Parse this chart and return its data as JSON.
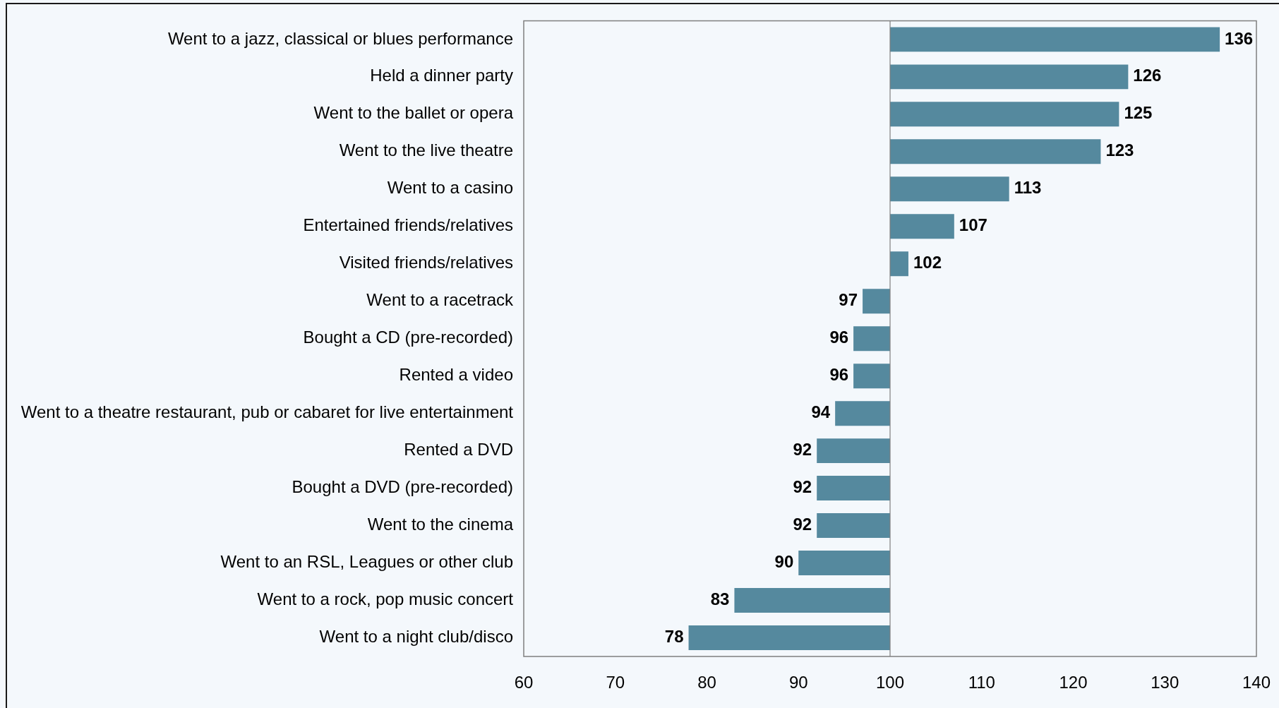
{
  "chart_data": {
    "type": "bar",
    "orientation": "horizontal",
    "categories": [
      "Went to a jazz, classical or blues performance",
      "Held a dinner party",
      "Went to the ballet or opera",
      "Went to the live theatre",
      "Went to a casino",
      "Entertained friends/relatives",
      "Visited friends/relatives",
      "Went to a racetrack",
      "Bought a CD (pre-recorded)",
      "Rented a video",
      "Went to a theatre restaurant, pub or cabaret for live entertainment",
      "Rented a DVD",
      "Bought a DVD (pre-recorded)",
      "Went to the cinema",
      "Went to an RSL, Leagues or other club",
      "Went to a rock, pop music concert",
      "Went to a night club/disco"
    ],
    "base": [
      100,
      100,
      100,
      100,
      100,
      100,
      100,
      100,
      100,
      100,
      100,
      100,
      100,
      100,
      100,
      100,
      100
    ],
    "values": [
      36,
      26,
      25,
      23,
      13,
      7,
      2,
      -3,
      -4,
      -4,
      -6,
      -8,
      -8,
      -8,
      -10,
      -17,
      -22
    ],
    "value_labels": [
      "136",
      "126",
      "125",
      "123",
      "113",
      "107",
      "102",
      "97",
      "96",
      "96",
      "94",
      "92",
      "92",
      "92",
      "90",
      "83",
      "78"
    ],
    "color": "#55899e",
    "xlim": [
      60,
      140
    ],
    "xticks": [
      60,
      70,
      80,
      90,
      100,
      110,
      120,
      130,
      140
    ],
    "ref_lines": [
      {
        "axis": "x",
        "value": 100,
        "color": "#7f7f7f"
      }
    ]
  }
}
